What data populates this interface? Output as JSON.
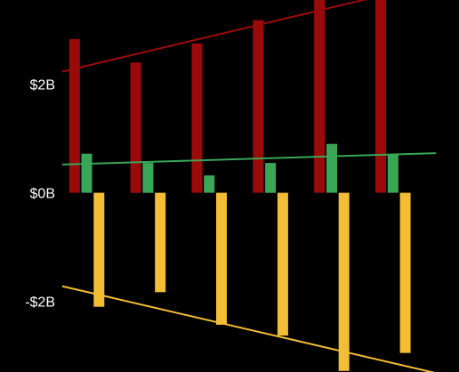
{
  "chart_data": {
    "type": "bar",
    "categories": [
      "",
      "",
      "",
      "",
      "",
      ""
    ],
    "series": [
      {
        "values": [
          2.83,
          2.4,
          2.75,
          3.18,
          3.6,
          3.75
        ],
        "color": "#9b0a0a"
      },
      {
        "values": [
          0.72,
          0.55,
          0.32,
          0.55,
          0.9,
          0.7
        ],
        "color": "#3aa657"
      },
      {
        "values": [
          -2.1,
          -1.83,
          -2.43,
          -2.63,
          -3.28,
          -2.95
        ],
        "color": "#f3be35"
      }
    ],
    "trendlines": [
      {
        "from": [
          -0.35,
          2.23
        ],
        "to": [
          5.75,
          3.87
        ],
        "color": "#9b0a0a"
      },
      {
        "from": [
          -0.35,
          0.52
        ],
        "to": [
          5.75,
          0.73
        ],
        "color": "#3aa657"
      },
      {
        "from": [
          -0.35,
          -1.72
        ],
        "to": [
          5.75,
          -3.32
        ],
        "color": "#f3be35"
      }
    ],
    "y_ticks": [
      {
        "value": 2,
        "label": "$2B"
      },
      {
        "value": 0,
        "label": "$0B"
      },
      {
        "value": -2,
        "label": "-$2B"
      }
    ],
    "ylim": [
      -3.3,
      3.55
    ],
    "xlim": [
      -0.35,
      5.75
    ],
    "grid": false,
    "legend": "none",
    "title": "",
    "xlabel": "",
    "ylabel": ""
  }
}
